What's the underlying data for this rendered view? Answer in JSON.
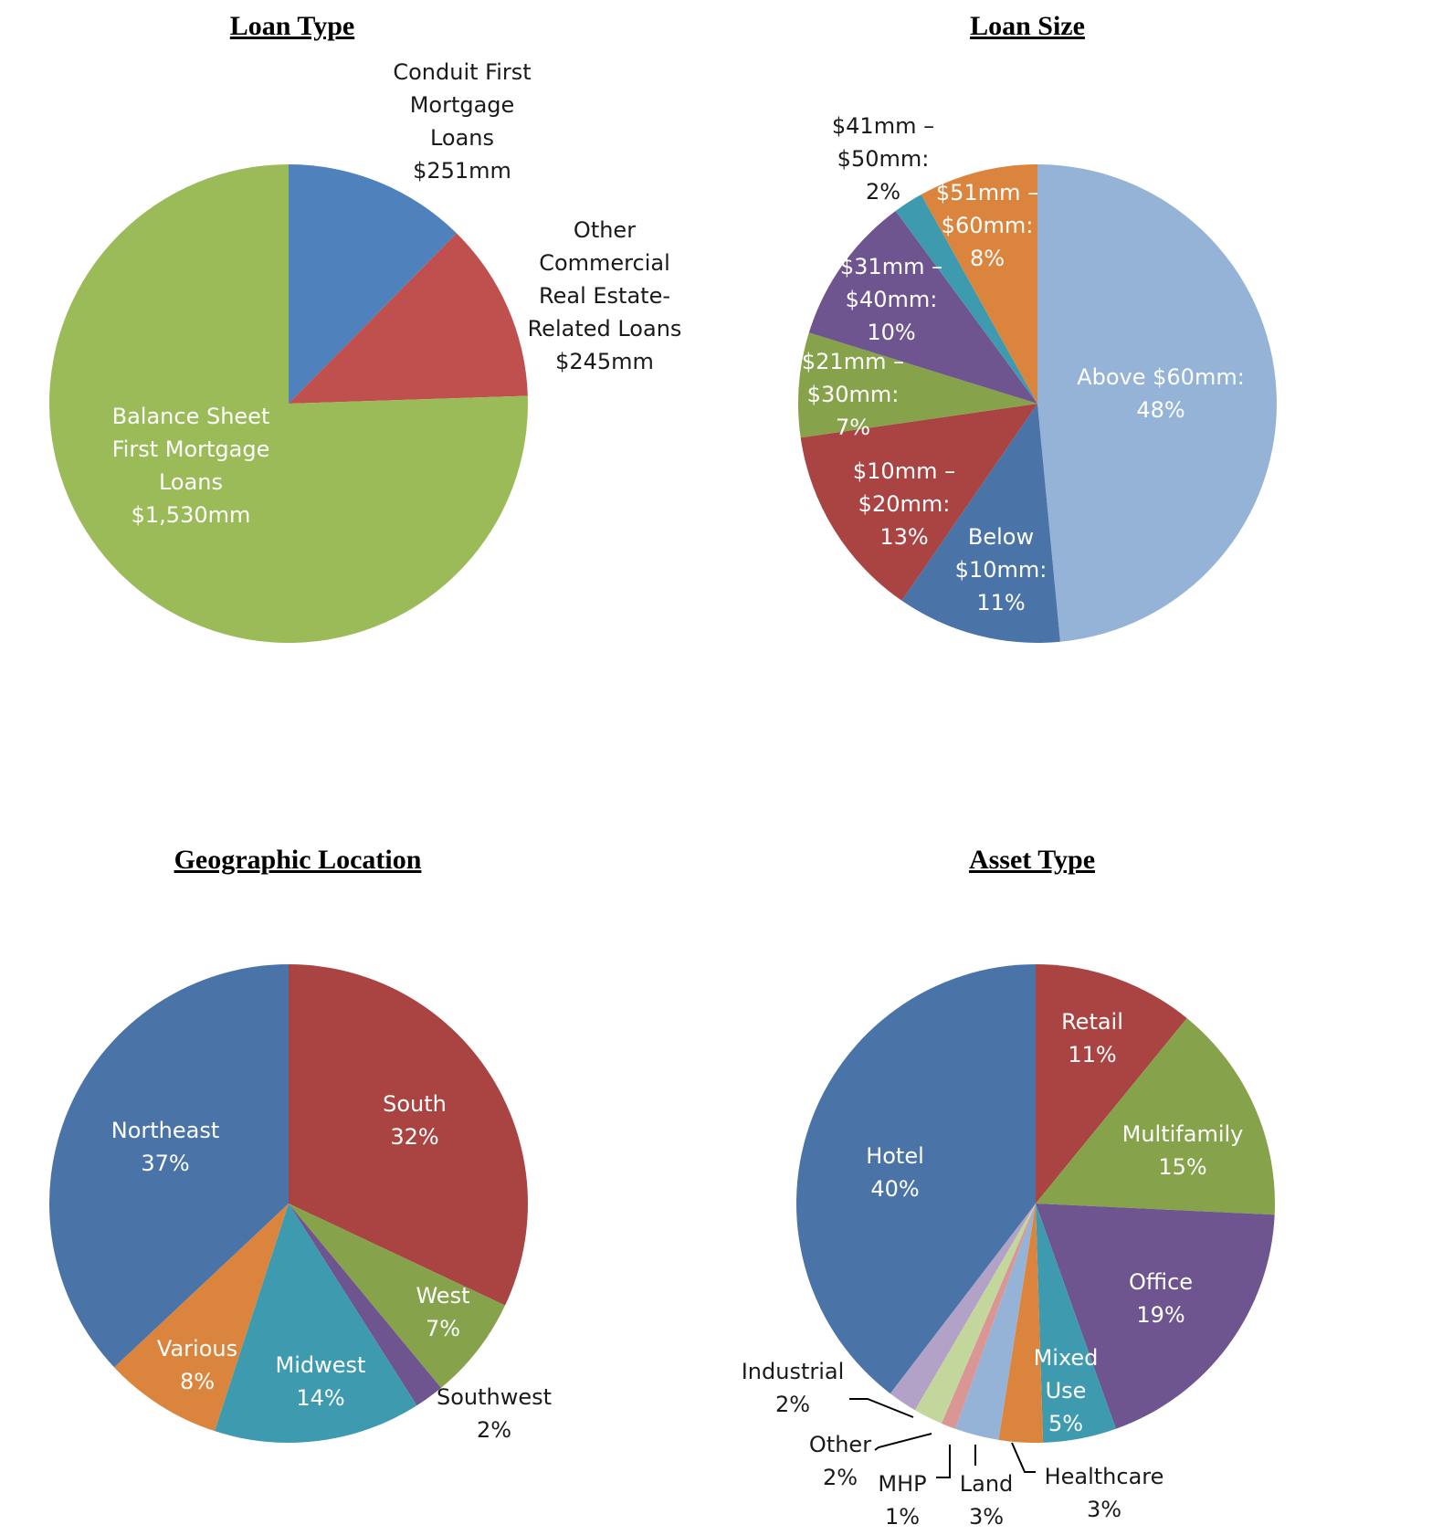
{
  "chart_data": [
    {
      "type": "pie",
      "title": "Loan Type",
      "slices": [
        {
          "label_lines": [
            "Conduit First",
            "Mortgage",
            "Loans",
            "$251mm"
          ],
          "value": 251,
          "color": "#4F81BD"
        },
        {
          "label_lines": [
            "Other",
            "Commercial",
            "Real Estate-",
            "Related Loans",
            "$245mm"
          ],
          "value": 245,
          "color": "#C0504D"
        },
        {
          "label_lines": [
            "Balance Sheet",
            "First Mortgage",
            "Loans",
            "$1,530mm"
          ],
          "value": 1530,
          "color": "#9BBB59"
        }
      ]
    },
    {
      "type": "pie",
      "title": "Loan Size",
      "slices": [
        {
          "label_lines": [
            "Above $60mm:",
            "48%"
          ],
          "value": 48,
          "color": "#95B3D7"
        },
        {
          "label_lines": [
            "Below",
            "$10mm:",
            "11%"
          ],
          "value": 11,
          "color": "#4A73A8"
        },
        {
          "label_lines": [
            "$10mm –",
            "$20mm:",
            "13%"
          ],
          "value": 13,
          "color": "#A94442"
        },
        {
          "label_lines": [
            "$21mm –",
            "$30mm:",
            "7%"
          ],
          "value": 7,
          "color": "#86A24A"
        },
        {
          "label_lines": [
            "$31mm –",
            "$40mm:",
            "10%"
          ],
          "value": 10,
          "color": "#6F5590"
        },
        {
          "label_lines": [
            "$41mm –",
            "$50mm:",
            "2%"
          ],
          "value": 2,
          "color": "#3E9AAE"
        },
        {
          "label_lines": [
            "$51mm –",
            "$60mm:",
            "8%"
          ],
          "value": 8,
          "color": "#DB843D"
        }
      ]
    },
    {
      "type": "pie",
      "title": "Geographic Location",
      "slices": [
        {
          "label_lines": [
            "South",
            "32%"
          ],
          "value": 32,
          "color": "#A94442"
        },
        {
          "label_lines": [
            "West",
            "7%"
          ],
          "value": 7,
          "color": "#86A24A"
        },
        {
          "label_lines": [
            "Southwest",
            "2%"
          ],
          "value": 2,
          "color": "#6F5590"
        },
        {
          "label_lines": [
            "Midwest",
            "14%"
          ],
          "value": 14,
          "color": "#3E9AAE"
        },
        {
          "label_lines": [
            "Various",
            "8%"
          ],
          "value": 8,
          "color": "#DB843D"
        },
        {
          "label_lines": [
            "Northeast",
            "37%"
          ],
          "value": 37,
          "color": "#4A73A8"
        }
      ]
    },
    {
      "type": "pie",
      "title": "Asset Type",
      "slices": [
        {
          "label_lines": [
            "Retail",
            "11%"
          ],
          "value": 11,
          "color": "#A94442"
        },
        {
          "label_lines": [
            "Multifamily",
            "15%"
          ],
          "value": 15,
          "color": "#86A24A"
        },
        {
          "label_lines": [
            "Office",
            "19%"
          ],
          "value": 19,
          "color": "#6F5590"
        },
        {
          "label_lines": [
            "Mixed",
            "Use",
            "5%"
          ],
          "value": 5,
          "color": "#3E9AAE"
        },
        {
          "label_lines": [
            "Healthcare",
            "3%"
          ],
          "value": 3,
          "color": "#DB843D"
        },
        {
          "label_lines": [
            "Land",
            "3%"
          ],
          "value": 3,
          "color": "#95B3D7"
        },
        {
          "label_lines": [
            "MHP",
            "1%"
          ],
          "value": 1,
          "color": "#D99694"
        },
        {
          "label_lines": [
            "Other",
            "2%"
          ],
          "value": 2,
          "color": "#C3D69B"
        },
        {
          "label_lines": [
            "Industrial",
            "2%"
          ],
          "value": 2,
          "color": "#B3A2C7"
        },
        {
          "label_lines": [
            "Hotel",
            "40%"
          ],
          "value": 40,
          "color": "#4A73A8"
        }
      ]
    }
  ]
}
